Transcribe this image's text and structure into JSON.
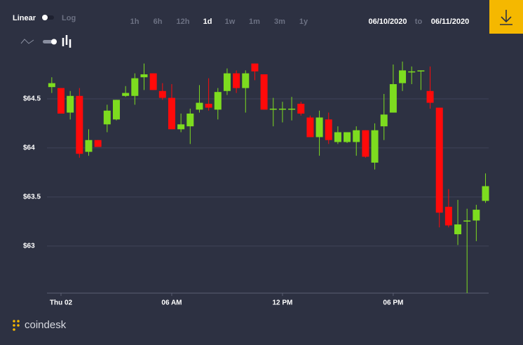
{
  "toolbar": {
    "scale_options": [
      "Linear",
      "Log"
    ],
    "log_scale": false,
    "ranges": [
      "1h",
      "6h",
      "12h",
      "1d",
      "1w",
      "1m",
      "3m",
      "1y"
    ],
    "selected_range_index": 3,
    "date_from": "06/10/2020",
    "date_separator": "to",
    "date_to": "06/11/2020"
  },
  "logo": "coindesk",
  "chart_data": {
    "type": "candlestick",
    "x": [
      -0.5,
      0,
      0.5,
      1,
      1.5,
      2,
      2.5,
      3,
      3.5,
      4,
      4.5,
      5,
      5.5,
      6,
      6.5,
      7,
      7.5,
      8,
      8.5,
      9,
      9.5,
      10,
      10.5,
      11,
      11.5,
      12,
      12.5,
      13,
      13.5,
      14,
      14.5,
      15,
      15.5,
      16,
      16.5,
      17,
      17.5,
      18,
      18.5,
      19,
      19.5,
      20,
      20.5,
      21,
      21.5,
      22,
      22.5,
      23
    ],
    "open": [
      64.62,
      64.61,
      64.36,
      64.53,
      63.96,
      64.08,
      64.24,
      64.29,
      64.53,
      64.53,
      64.72,
      64.76,
      64.58,
      64.51,
      64.19,
      64.22,
      64.39,
      64.45,
      64.39,
      64.58,
      64.76,
      64.61,
      64.86,
      64.75,
      64.39,
      64.39,
      64.39,
      64.45,
      64.31,
      64.11,
      64.29,
      64.06,
      64.06,
      64.06,
      64.18,
      63.85,
      64.22,
      64.36,
      64.66,
      64.77,
      64.79,
      64.58,
      64.41,
      63.4,
      63.12,
      63.25,
      63.26,
      63.46
    ],
    "high": [
      64.72,
      64.61,
      64.58,
      64.61,
      64.19,
      64.08,
      64.44,
      64.49,
      64.63,
      64.76,
      64.86,
      64.76,
      64.66,
      64.65,
      64.35,
      64.4,
      64.64,
      64.71,
      64.61,
      64.81,
      64.79,
      64.79,
      64.86,
      64.75,
      64.51,
      64.47,
      64.52,
      64.47,
      64.33,
      64.38,
      64.36,
      64.22,
      64.16,
      64.22,
      64.18,
      64.25,
      64.55,
      64.85,
      64.88,
      64.83,
      64.79,
      64.83,
      64.41,
      63.58,
      63.47,
      63.38,
      63.42,
      63.74
    ],
    "low": [
      64.56,
      64.35,
      64.29,
      63.9,
      63.92,
      64.01,
      64.16,
      64.28,
      64.52,
      64.44,
      64.59,
      64.59,
      64.49,
      64.19,
      64.16,
      64.04,
      64.36,
      64.38,
      64.29,
      64.54,
      64.56,
      64.36,
      64.69,
      64.39,
      64.22,
      64.26,
      64.28,
      64.33,
      64.11,
      63.92,
      64.04,
      64.04,
      64.05,
      63.92,
      63.9,
      63.78,
      64.08,
      64.36,
      64.58,
      64.65,
      64.59,
      64.4,
      63.19,
      63.19,
      63.01,
      62.52,
      63.05,
      63.44
    ],
    "close": [
      64.66,
      64.35,
      64.53,
      63.94,
      64.08,
      64.01,
      64.38,
      64.49,
      64.56,
      64.71,
      64.75,
      64.59,
      64.51,
      64.19,
      64.24,
      64.35,
      64.46,
      64.41,
      64.57,
      64.76,
      64.61,
      64.76,
      64.78,
      64.39,
      64.4,
      64.4,
      64.4,
      64.35,
      64.11,
      64.31,
      64.08,
      64.16,
      64.16,
      64.18,
      63.91,
      64.18,
      64.34,
      64.65,
      64.79,
      64.78,
      64.79,
      64.46,
      63.34,
      63.21,
      63.22,
      63.26,
      63.37,
      63.61
    ],
    "up_color": "#7ddc1f",
    "down_color": "#ff0a0a",
    "xlim": [
      -0.76,
      23.17
    ],
    "xticks": [
      {
        "value": 0,
        "label": "Thu 02"
      },
      {
        "value": 6,
        "label": "06 AM"
      },
      {
        "value": 12,
        "label": "12 PM"
      },
      {
        "value": 18,
        "label": "06 PM"
      }
    ],
    "ylim": [
      62.52,
      64.9
    ],
    "yticks": [
      {
        "value": 63,
        "label": "$63"
      },
      {
        "value": 63.5,
        "label": "$63.5"
      },
      {
        "value": 64,
        "label": "$64"
      },
      {
        "value": 64.5,
        "label": "$64.5"
      }
    ],
    "grid": true
  }
}
